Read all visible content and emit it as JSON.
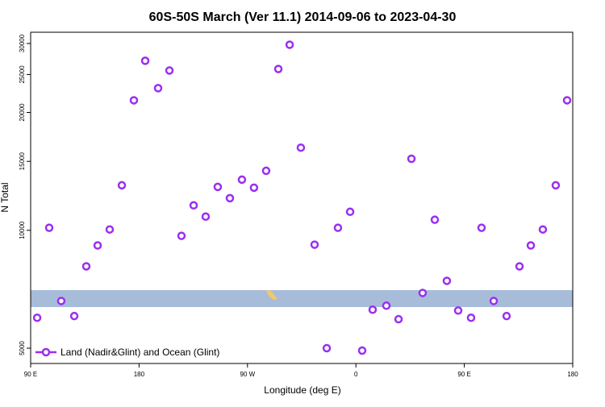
{
  "chart_data": {
    "type": "scatter",
    "title": "60S-50S March (Ver 11.1)   2014-09-06 to 2023-04-30",
    "x_label": "Longitude (deg E)",
    "y_label": "N Total",
    "log_y": true,
    "legend_position": "bottom-left",
    "xlim": [
      90,
      540
    ],
    "ylim": [
      4570,
      32050
    ],
    "xticks": [
      {
        "value": 90,
        "label": "90 E"
      },
      {
        "value": 180,
        "label": "180"
      },
      {
        "value": 270,
        "label": "90 W"
      },
      {
        "value": 360,
        "label": "0"
      },
      {
        "value": 450,
        "label": "90 E"
      },
      {
        "value": 540,
        "label": "180"
      }
    ],
    "yticks": [
      5000,
      10000,
      15000,
      20000,
      25000,
      30000
    ],
    "series": [
      {
        "name": "Land (Nadir&Glint) and Ocean (Glint)",
        "color": "#9b2ff0",
        "x": [
          95.4,
          105.4,
          115.4,
          126.2,
          136.2,
          145.6,
          155.6,
          165.7,
          175.7,
          185.1,
          195.8,
          205.2,
          215.2,
          225.3,
          235.3,
          245.3,
          255.4,
          265.4,
          275.4,
          285.5,
          295.6,
          305.0,
          314.3,
          325.7,
          335.8,
          345.1,
          355.2,
          365.2,
          373.9,
          385.3,
          395.4,
          406.1,
          415.4,
          425.5,
          435.5,
          444.9,
          455.6,
          464.3,
          474.4,
          485.1,
          495.8,
          505.2,
          515.2,
          525.9,
          535.3
        ],
        "values": [
          5980,
          10150,
          6600,
          6040,
          8090,
          9150,
          10050,
          13030,
          21480,
          27100,
          23070,
          25590,
          9680,
          11580,
          10840,
          12910,
          12080,
          13470,
          12850,
          14190,
          25820,
          29780,
          16260,
          9190,
          5000,
          10150,
          11150,
          4930,
          6270,
          6420,
          5930,
          15230,
          6920,
          10640,
          7430,
          6240,
          5980,
          10150,
          6600,
          6040,
          8090,
          9150,
          10050,
          13030,
          21480
        ]
      }
    ]
  }
}
